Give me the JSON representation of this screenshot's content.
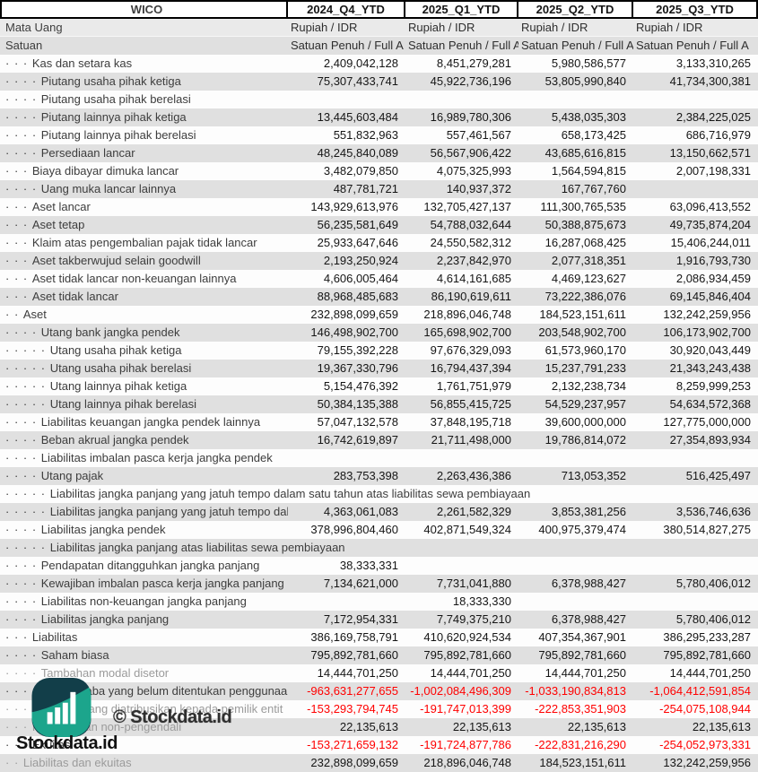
{
  "header": {
    "company": "WICO",
    "periods": [
      "2024_Q4_YTD",
      "2025_Q1_YTD",
      "2025_Q2_YTD",
      "2025_Q3_YTD"
    ]
  },
  "meta_rows": [
    {
      "label": "Mata Uang",
      "values": [
        "Rupiah / IDR",
        "Rupiah / IDR",
        "Rupiah / IDR",
        "Rupiah / IDR"
      ]
    },
    {
      "label": "Satuan",
      "values": [
        "Satuan Penuh / Full A",
        "Satuan Penuh / Full A",
        "Satuan Penuh / Full A",
        "Satuan Penuh / Full A"
      ]
    }
  ],
  "rows": [
    {
      "indent": 3,
      "label": "Kas dan setara kas",
      "values": [
        "2,409,042,128",
        "8,451,279,281",
        "5,980,586,577",
        "3,133,310,265"
      ]
    },
    {
      "indent": 4,
      "label": "Piutang usaha pihak ketiga",
      "values": [
        "75,307,433,741",
        "45,922,736,196",
        "53,805,990,840",
        "41,734,300,381"
      ]
    },
    {
      "indent": 4,
      "label": "Piutang usaha pihak berelasi",
      "values": [
        "",
        "",
        "",
        ""
      ]
    },
    {
      "indent": 4,
      "label": "Piutang lainnya pihak ketiga",
      "values": [
        "13,445,603,484",
        "16,989,780,306",
        "5,438,035,303",
        "2,384,225,025"
      ]
    },
    {
      "indent": 4,
      "label": "Piutang lainnya pihak berelasi",
      "values": [
        "551,832,963",
        "557,461,567",
        "658,173,425",
        "686,716,979"
      ]
    },
    {
      "indent": 4,
      "label": "Persediaan lancar",
      "values": [
        "48,245,840,089",
        "56,567,906,422",
        "43,685,616,815",
        "13,150,662,571"
      ]
    },
    {
      "indent": 3,
      "label": "Biaya dibayar dimuka lancar",
      "values": [
        "3,482,079,850",
        "4,075,325,993",
        "1,564,594,815",
        "2,007,198,331"
      ]
    },
    {
      "indent": 4,
      "label": "Uang muka lancar lainnya",
      "values": [
        "487,781,721",
        "140,937,372",
        "167,767,760",
        ""
      ]
    },
    {
      "indent": 3,
      "label": "Aset lancar",
      "values": [
        "143,929,613,976",
        "132,705,427,137",
        "111,300,765,535",
        "63,096,413,552"
      ]
    },
    {
      "indent": 3,
      "label": "Aset tetap",
      "values": [
        "56,235,581,649",
        "54,788,032,644",
        "50,388,875,673",
        "49,735,874,204"
      ]
    },
    {
      "indent": 3,
      "label": "Klaim atas pengembalian pajak tidak lancar",
      "values": [
        "25,933,647,646",
        "24,550,582,312",
        "16,287,068,425",
        "15,406,244,011"
      ]
    },
    {
      "indent": 3,
      "label": "Aset takberwujud selain goodwill",
      "values": [
        "2,193,250,924",
        "2,237,842,970",
        "2,077,318,351",
        "1,916,793,730"
      ]
    },
    {
      "indent": 3,
      "label": "Aset tidak lancar non-keuangan lainnya",
      "values": [
        "4,606,005,464",
        "4,614,161,685",
        "4,469,123,627",
        "2,086,934,459"
      ]
    },
    {
      "indent": 3,
      "label": "Aset tidak lancar",
      "values": [
        "88,968,485,683",
        "86,190,619,611",
        "73,222,386,076",
        "69,145,846,404"
      ]
    },
    {
      "indent": 2,
      "label": "Aset",
      "values": [
        "232,898,099,659",
        "218,896,046,748",
        "184,523,151,611",
        "132,242,259,956"
      ]
    },
    {
      "indent": 4,
      "label": "Utang bank jangka pendek",
      "values": [
        "146,498,902,700",
        "165,698,902,700",
        "203,548,902,700",
        "106,173,902,700"
      ]
    },
    {
      "indent": 5,
      "label": "Utang usaha pihak ketiga",
      "values": [
        "79,155,392,228",
        "97,676,329,093",
        "61,573,960,170",
        "30,920,043,449"
      ]
    },
    {
      "indent": 5,
      "label": "Utang usaha pihak berelasi",
      "values": [
        "19,367,330,796",
        "16,794,437,394",
        "15,237,791,233",
        "21,343,243,438"
      ]
    },
    {
      "indent": 5,
      "label": "Utang lainnya pihak ketiga",
      "values": [
        "5,154,476,392",
        "1,761,751,979",
        "2,132,238,734",
        "8,259,999,253"
      ]
    },
    {
      "indent": 5,
      "label": "Utang lainnya pihak berelasi",
      "values": [
        "50,384,135,388",
        "56,855,415,725",
        "54,529,237,957",
        "54,634,572,368"
      ]
    },
    {
      "indent": 4,
      "label": "Liabilitas keuangan jangka pendek lainnya",
      "values": [
        "57,047,132,578",
        "37,848,195,718",
        "39,600,000,000",
        "127,775,000,000"
      ]
    },
    {
      "indent": 4,
      "label": "Beban akrual jangka pendek",
      "values": [
        "16,742,619,897",
        "21,711,498,000",
        "19,786,814,072",
        "27,354,893,934"
      ]
    },
    {
      "indent": 4,
      "label": "Liabilitas imbalan pasca kerja jangka pendek",
      "values": [
        "",
        "",
        "",
        ""
      ]
    },
    {
      "indent": 4,
      "label": "Utang pajak",
      "values": [
        "283,753,398",
        "2,263,436,386",
        "713,053,352",
        "516,425,497"
      ]
    },
    {
      "indent": 5,
      "label": "Liabilitas jangka panjang yang jatuh tempo dalam satu tahun atas liabilitas sewa pembiayaan",
      "values": [
        "",
        "",
        "",
        ""
      ]
    },
    {
      "indent": 5,
      "label": "Liabilitas jangka panjang yang jatuh tempo dal",
      "values": [
        "4,363,061,083",
        "2,261,582,329",
        "3,853,381,256",
        "3,536,746,636"
      ]
    },
    {
      "indent": 4,
      "label": "Liabilitas jangka pendek",
      "values": [
        "378,996,804,460",
        "402,871,549,324",
        "400,975,379,474",
        "380,514,827,275"
      ]
    },
    {
      "indent": 5,
      "label": "Liabilitas jangka panjang atas liabilitas sewa pembiayaan",
      "values": [
        "",
        "",
        "",
        ""
      ]
    },
    {
      "indent": 4,
      "label": "Pendapatan ditangguhkan jangka panjang",
      "values": [
        "38,333,331",
        "",
        "",
        ""
      ]
    },
    {
      "indent": 4,
      "label": "Kewajiban imbalan pasca kerja jangka panjang",
      "values": [
        "7,134,621,000",
        "7,731,041,880",
        "6,378,988,427",
        "5,780,406,012"
      ]
    },
    {
      "indent": 4,
      "label": "Liabilitas non-keuangan jangka panjang",
      "values": [
        "",
        "18,333,330",
        "",
        ""
      ]
    },
    {
      "indent": 4,
      "label": "Liabilitas jangka panjang",
      "values": [
        "7,172,954,331",
        "7,749,375,210",
        "6,378,988,427",
        "5,780,406,012"
      ]
    },
    {
      "indent": 3,
      "label": "Liabilitas",
      "values": [
        "386,169,758,791",
        "410,620,924,534",
        "407,354,367,901",
        "386,295,233,287"
      ]
    },
    {
      "indent": 4,
      "label": "Saham biasa",
      "values": [
        "795,892,781,660",
        "795,892,781,660",
        "795,892,781,660",
        "795,892,781,660"
      ]
    },
    {
      "indent": 4,
      "label": "Tambahan modal disetor",
      "dimmed": true,
      "values": [
        "14,444,701,250",
        "14,444,701,250",
        "14,444,701,250",
        "14,444,701,250"
      ]
    },
    {
      "indent": 5,
      "label": "Saldo laba yang belum ditentukan penggunaan",
      "values": [
        "-963,631,277,655",
        "-1,002,084,496,309",
        "-1,033,190,834,813",
        "-1,064,412,591,854"
      ]
    },
    {
      "indent": 4,
      "label": "Ekuitas yang diatribusikan kepada pemilik entit",
      "dimmed": true,
      "values": [
        "-153,293,794,745",
        "-191,747,013,399",
        "-222,853,351,903",
        "-254,075,108,944"
      ]
    },
    {
      "indent": 3,
      "label": "Kepentingan non-pengendali",
      "dimmed": true,
      "values": [
        "22,135,613",
        "22,135,613",
        "22,135,613",
        "22,135,613"
      ]
    },
    {
      "indent": 3,
      "label": "Ekuitas",
      "values": [
        "-153,271,659,132",
        "-191,724,877,786",
        "-222,831,216,290",
        "-254,052,973,331"
      ]
    },
    {
      "indent": 2,
      "label": "Liabilitas dan ekuitas",
      "dimmed": true,
      "values": [
        "232,898,099,659",
        "218,896,046,748",
        "184,523,151,611",
        "132,242,259,956"
      ]
    }
  ],
  "watermark": {
    "copyright": "© Stockdata.id",
    "brand": "Stockdata.id"
  },
  "colors": {
    "negative": "#ff0000",
    "stripe": "#e0e0e0",
    "header_border": "#000000",
    "logo_dark": "#123e49",
    "logo_teal": "#1ca58c"
  }
}
